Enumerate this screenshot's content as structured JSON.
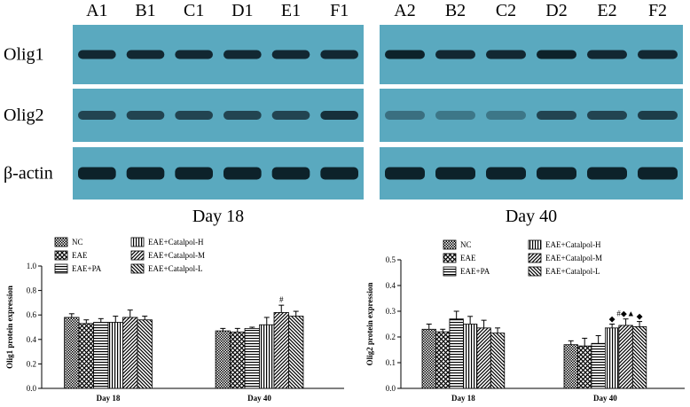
{
  "blots": {
    "lanes_left": [
      "A1",
      "B1",
      "C1",
      "D1",
      "E1",
      "F1"
    ],
    "lanes_right": [
      "A2",
      "B2",
      "C2",
      "D2",
      "E2",
      "F2"
    ],
    "rows": [
      "Olig1",
      "Olig2",
      "β-actin"
    ],
    "panel_labels": [
      "Day 18",
      "Day 40"
    ]
  },
  "chart_data": [
    {
      "type": "bar",
      "ylabel": "Olig1 protein expression",
      "categories": [
        "Day 18",
        "Day 40"
      ],
      "ylim": [
        0,
        1.0
      ],
      "yticks": [
        {
          "value": 0,
          "label": "0.0"
        },
        0.2,
        0.4,
        0.6,
        0.8,
        {
          "value": 1.0,
          "label": "1.0"
        }
      ],
      "series": [
        {
          "name": "NC",
          "color": "#000000",
          "hatch": "dots",
          "values": [
            0.58,
            0.47
          ],
          "errors": [
            0.03,
            0.02
          ],
          "value_annotations": [
            null,
            null
          ]
        },
        {
          "name": "EAE",
          "color": "#000000",
          "hatch": "cross",
          "values": [
            0.53,
            0.46
          ],
          "errors": [
            0.03,
            0.03
          ],
          "value_annotations": [
            null,
            null
          ]
        },
        {
          "name": "EAE+PA",
          "color": "#000000",
          "hatch": "horizontal",
          "values": [
            0.54,
            0.49
          ],
          "errors": [
            0.03,
            0.01
          ],
          "value_annotations": [
            null,
            null
          ]
        },
        {
          "name": "EAE+Catalpol-H",
          "color": "#000000",
          "hatch": "vertical",
          "values": [
            0.54,
            0.52
          ],
          "errors": [
            0.05,
            0.06
          ],
          "value_annotations": [
            null,
            null
          ]
        },
        {
          "name": "EAE+Catalpol-M",
          "color": "#000000",
          "hatch": "diagonal",
          "values": [
            0.58,
            0.62
          ],
          "errors": [
            0.06,
            0.06
          ],
          "value_annotations": [
            null,
            "#"
          ]
        },
        {
          "name": "EAE+Catalpol-L",
          "color": "#000000",
          "hatch": "back-diagonal",
          "values": [
            0.56,
            0.59
          ],
          "errors": [
            0.03,
            0.04
          ],
          "value_annotations": [
            null,
            null
          ]
        }
      ]
    },
    {
      "type": "bar",
      "ylabel": "Olig2 protein expression",
      "categories": [
        "Day 18",
        "Day 40"
      ],
      "ylim": [
        0,
        0.5
      ],
      "yticks": [
        {
          "value": 0,
          "label": "0.0"
        },
        0.1,
        0.2,
        0.3,
        0.4,
        0.5
      ],
      "series": [
        {
          "name": "NC",
          "color": "#000000",
          "hatch": "dots",
          "values": [
            0.23,
            0.17
          ],
          "errors": [
            0.02,
            0.015
          ],
          "value_annotations": [
            null,
            null
          ]
        },
        {
          "name": "EAE",
          "color": "#000000",
          "hatch": "cross",
          "values": [
            0.22,
            0.165
          ],
          "errors": [
            0.01,
            0.03
          ],
          "value_annotations": [
            null,
            null
          ]
        },
        {
          "name": "EAE+PA",
          "color": "#000000",
          "hatch": "horizontal",
          "values": [
            0.27,
            0.175
          ],
          "errors": [
            0.03,
            0.03
          ],
          "value_annotations": [
            null,
            null
          ]
        },
        {
          "name": "EAE+Catalpol-H",
          "color": "#000000",
          "hatch": "vertical",
          "values": [
            0.25,
            0.235
          ],
          "errors": [
            0.03,
            0.015
          ],
          "value_annotations": [
            null,
            "◆"
          ]
        },
        {
          "name": "EAE+Catalpol-M",
          "color": "#000000",
          "hatch": "diagonal",
          "values": [
            0.235,
            0.245
          ],
          "errors": [
            0.03,
            0.025
          ],
          "value_annotations": [
            null,
            "#◆▲"
          ]
        },
        {
          "name": "EAE+Catalpol-L",
          "color": "#000000",
          "hatch": "back-diagonal",
          "values": [
            0.215,
            0.24
          ],
          "errors": [
            0.02,
            0.02
          ],
          "value_annotations": [
            null,
            "◆"
          ]
        }
      ]
    }
  ]
}
